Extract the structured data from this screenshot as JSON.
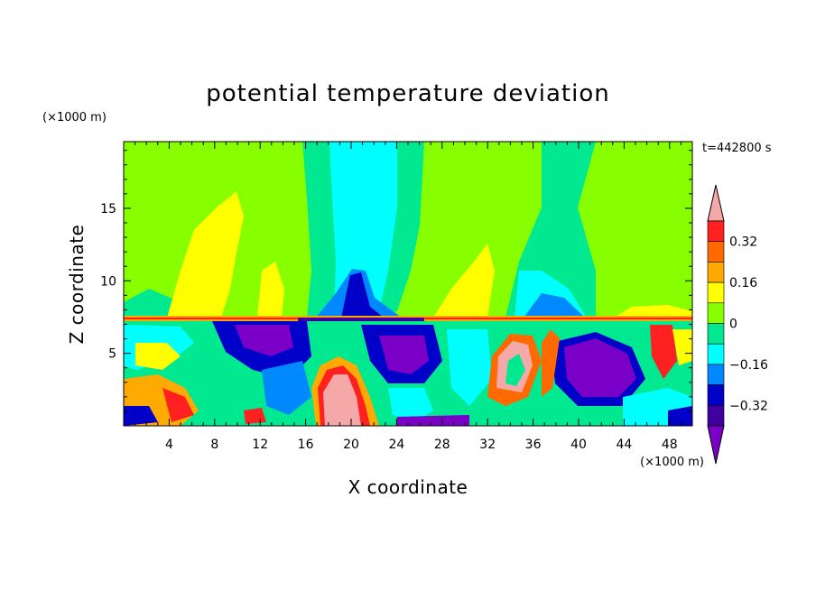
{
  "chart_data": {
    "type": "heatmap",
    "title": "potential temperature deviation",
    "xlabel": "X coordinate",
    "ylabel": "Z coordinate",
    "x_unit": "(×1000 m)",
    "y_unit": "(×1000 m)",
    "time_label": "t=442800 s",
    "xlim": [
      0,
      50
    ],
    "ylim": [
      0,
      19.6
    ],
    "x_ticks": [
      4,
      8,
      12,
      16,
      20,
      24,
      28,
      32,
      36,
      40,
      44,
      48
    ],
    "x_tick_labels": [
      "4",
      "8",
      "12",
      "16",
      "20",
      "24",
      "28",
      "32",
      "36",
      "40",
      "44",
      "48"
    ],
    "y_ticks": [
      5,
      10,
      15
    ],
    "y_tick_labels": [
      "5",
      "10",
      "15"
    ],
    "colorbar": {
      "levels": [
        -0.4,
        -0.32,
        -0.24,
        -0.16,
        -0.08,
        0,
        0.08,
        0.16,
        0.24,
        0.32,
        0.4
      ],
      "tick_labels": [
        "0.32",
        "0.16",
        "0",
        "−0.16",
        "−0.32"
      ],
      "tick_values": [
        0.32,
        0.16,
        0,
        -0.16,
        -0.32
      ],
      "colors_top_to_bottom": [
        "#f4a8a8",
        "#ff2020",
        "#ff6a00",
        "#ffaa00",
        "#ffff00",
        "#88ff00",
        "#00e890",
        "#00ffff",
        "#0088ff",
        "#0000c8",
        "#4000a0",
        "#7a00c8"
      ]
    }
  }
}
